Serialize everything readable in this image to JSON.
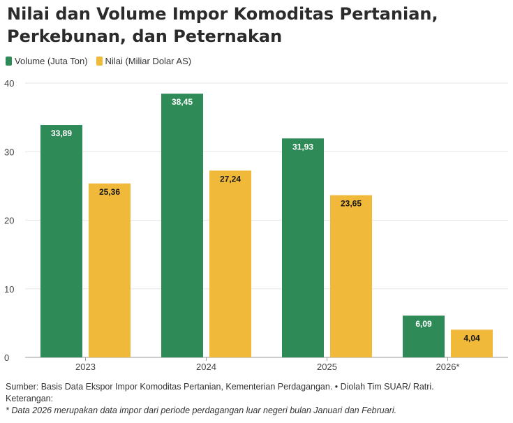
{
  "title_lines": [
    "Nilai dan Volume Impor Komoditas Pertanian,",
    "Perkebunan, dan Peternakan"
  ],
  "footer": {
    "source": "Sumber: Basis Data Ekspor Impor Komoditas Pertanian, Kementerian Perdagangan. • Diolah Tim SUAR/ Ratri.",
    "note_label": "Keterangan:",
    "note": "* Data 2026 merupakan data impor dari periode perdagangan luar negeri bulan Januari dan Februari."
  },
  "chart_data": {
    "type": "bar",
    "categories": [
      "2023",
      "2024",
      "2025",
      "2026*"
    ],
    "series": [
      {
        "name": "Volume (Juta Ton)",
        "color": "#2e8b57",
        "label_color": "#ffffff",
        "values": [
          33.89,
          38.45,
          31.93,
          6.09
        ],
        "labels": [
          "33,89",
          "38,45",
          "31,93",
          "6,09"
        ]
      },
      {
        "name": "Nilai (Miliar Dolar AS)",
        "color": "#f0b93a",
        "label_color": "#1a1a1a",
        "values": [
          25.36,
          27.24,
          23.65,
          4.04
        ],
        "labels": [
          "25,36",
          "27,24",
          "23,65",
          "4,04"
        ]
      }
    ],
    "ylim": [
      0,
      40
    ],
    "yticks": [
      "0",
      "10",
      "20",
      "30",
      "40"
    ],
    "grid": true,
    "legend_position": "top-left",
    "xlabel": "",
    "ylabel": ""
  }
}
